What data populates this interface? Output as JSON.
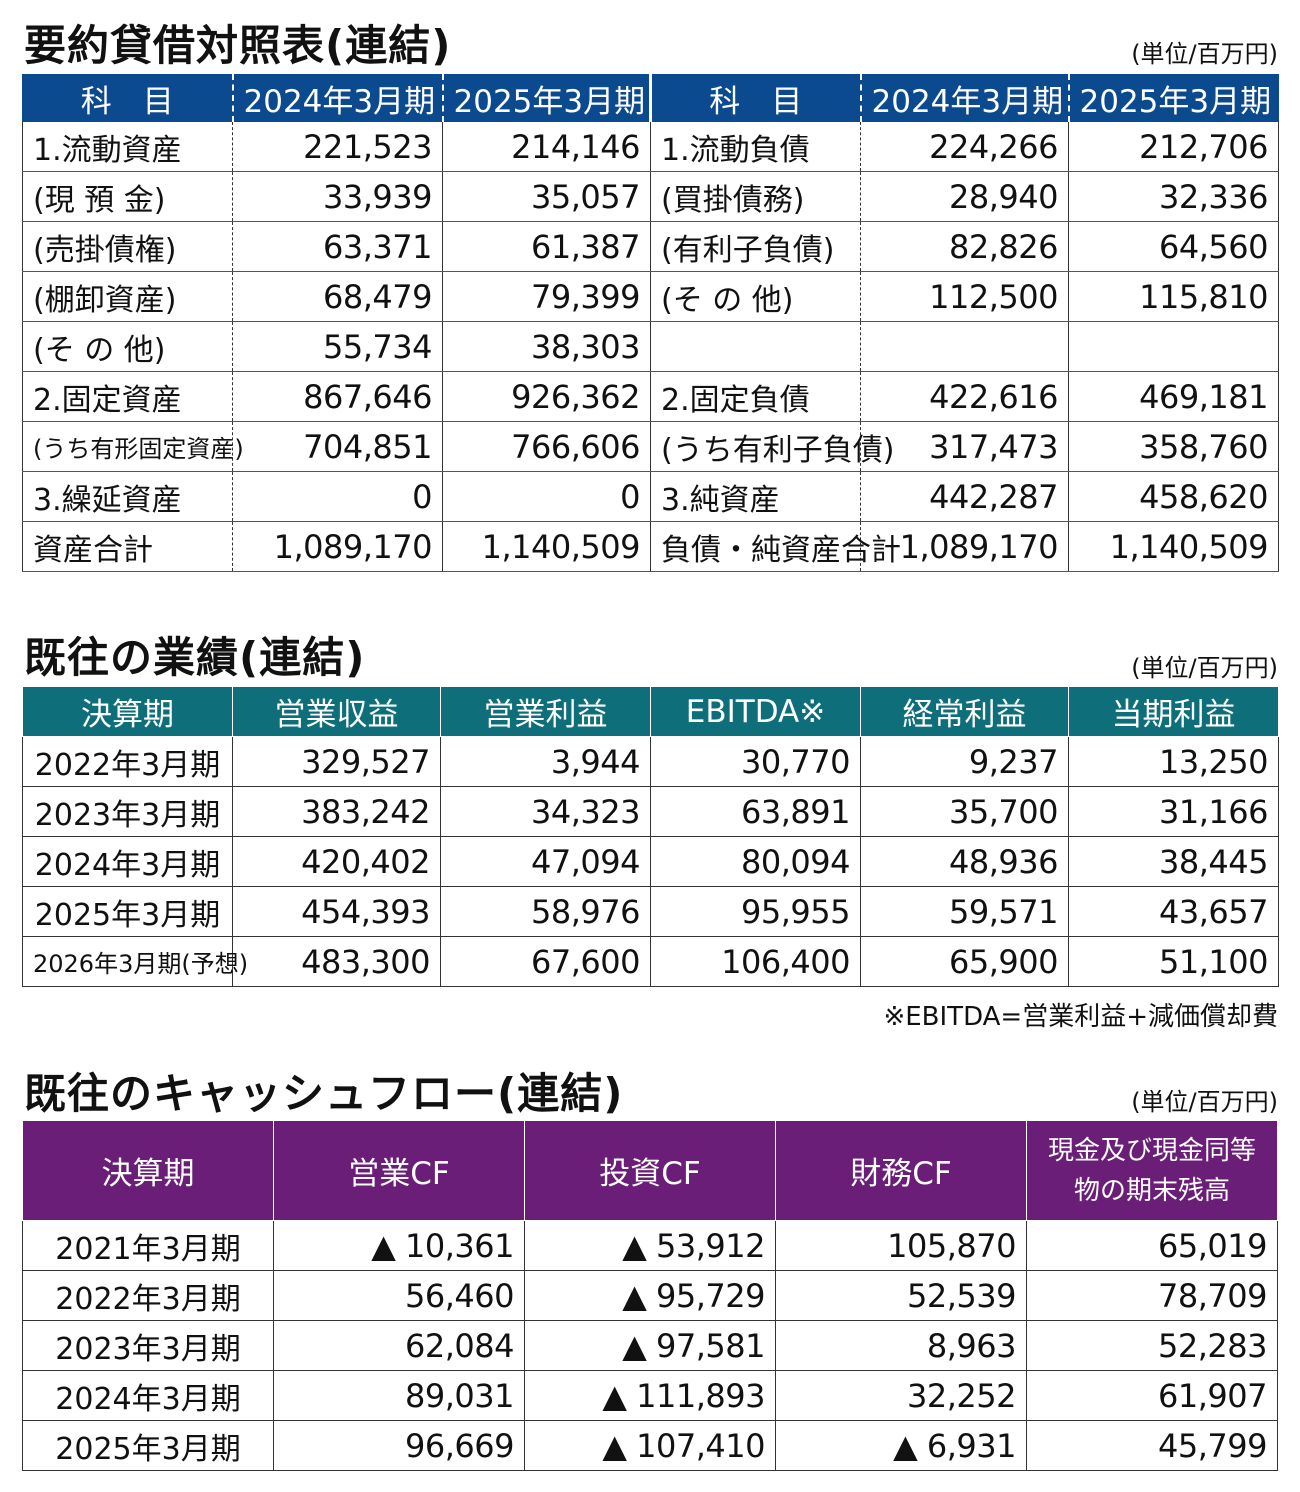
{
  "balance_sheet": {
    "title": "要約貸借対照表(連結)",
    "unit": "(単位/百万円)",
    "headers": [
      "科　目",
      "2024年3月期",
      "2025年3月期",
      "科　目",
      "2024年3月期",
      "2025年3月期"
    ],
    "rows": [
      [
        "1.流動資産",
        "221,523",
        "214,146",
        "1.流動負債",
        "224,266",
        "212,706"
      ],
      [
        "(現 預 金)",
        "33,939",
        "35,057",
        "(買掛債務)",
        "28,940",
        "32,336"
      ],
      [
        "(売掛債権)",
        "63,371",
        "61,387",
        "(有利子負債)",
        "82,826",
        "64,560"
      ],
      [
        "(棚卸資産)",
        "68,479",
        "79,399",
        "(そ の 他)",
        "112,500",
        "115,810"
      ],
      [
        "(そ の 他)",
        "55,734",
        "38,303",
        "",
        "",
        ""
      ],
      [
        "2.固定資産",
        "867,646",
        "926,362",
        "2.固定負債",
        "422,616",
        "469,181"
      ],
      [
        "(うち有形固定資産)",
        "704,851",
        "766,606",
        "(うち有利子負債)",
        "317,473",
        "358,760"
      ],
      [
        "3.繰延資産",
        "0",
        "0",
        "3.純資産",
        "442,287",
        "458,620"
      ],
      [
        "資産合計",
        "1,089,170",
        "1,140,509",
        "負債・純資産合計",
        "1,089,170",
        "1,140,509"
      ]
    ]
  },
  "performance": {
    "title": "既往の業績(連結)",
    "unit": "(単位/百万円)",
    "headers": [
      "決算期",
      "営業収益",
      "営業利益",
      "EBITDA※",
      "経常利益",
      "当期利益"
    ],
    "rows": [
      [
        "2022年3月期",
        "329,527",
        "3,944",
        "30,770",
        "9,237",
        "13,250"
      ],
      [
        "2023年3月期",
        "383,242",
        "34,323",
        "63,891",
        "35,700",
        "31,166"
      ],
      [
        "2024年3月期",
        "420,402",
        "47,094",
        "80,094",
        "48,936",
        "38,445"
      ],
      [
        "2025年3月期",
        "454,393",
        "58,976",
        "95,955",
        "59,571",
        "43,657"
      ],
      [
        "2026年3月期(予想)",
        "483,300",
        "67,600",
        "106,400",
        "65,900",
        "51,100"
      ]
    ],
    "note": "※EBITDA=営業利益+減価償却費"
  },
  "cashflow": {
    "title": "既往のキャッシュフロー(連結)",
    "unit": "(単位/百万円)",
    "headers": [
      "決算期",
      "営業CF",
      "投資CF",
      "財務CF",
      "現金及び現金同等物の期末残高"
    ],
    "rows": [
      [
        "2021年3月期",
        "▲ 10,361",
        "▲ 53,912",
        "105,870",
        "65,019"
      ],
      [
        "2022年3月期",
        "56,460",
        "▲ 95,729",
        "52,539",
        "78,709"
      ],
      [
        "2023年3月期",
        "62,084",
        "▲ 97,581",
        "8,963",
        "52,283"
      ],
      [
        "2024年3月期",
        "89,031",
        "▲ 111,893",
        "32,252",
        "61,907"
      ],
      [
        "2025年3月期",
        "96,669",
        "▲ 107,410",
        "▲ 6,931",
        "45,799"
      ]
    ]
  },
  "colors": {
    "bs_header": "#0b4a8f",
    "pl_header": "#0e6f7a",
    "cf_header": "#6a1e78"
  }
}
